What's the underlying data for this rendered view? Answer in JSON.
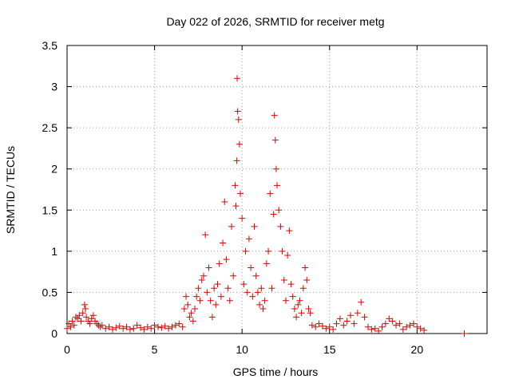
{
  "chart_data": {
    "type": "scatter",
    "title": "Day 022 of 2026, SRMTID for receiver metg",
    "xlabel": "GPS time / hours",
    "ylabel": "SRMTID / TECUs",
    "xlim": [
      0,
      24
    ],
    "ylim": [
      0,
      3.5
    ],
    "xticks": [
      0,
      5,
      10,
      15,
      20
    ],
    "xtick_labels": [
      "0",
      "5",
      "10",
      "15",
      "20"
    ],
    "yticks": [
      0,
      0.5,
      1,
      1.5,
      2,
      2.5,
      3,
      3.5
    ],
    "ytick_labels": [
      "0",
      "0.5",
      "1",
      "1.5",
      "2",
      "2.5",
      "3",
      "3.5"
    ],
    "grid": true,
    "legend": "none",
    "marker": "plus",
    "color": "#e00000",
    "series": [
      {
        "x": [
          0.0,
          0.1,
          0.2,
          0.3,
          0.4,
          0.5,
          0.6,
          0.7,
          0.8,
          0.9,
          1.0,
          1.05,
          1.1,
          1.2,
          1.3,
          1.4,
          1.5,
          1.6,
          1.7,
          1.8,
          1.9,
          2.0,
          2.2,
          2.4,
          2.6,
          2.8,
          3.0,
          3.2,
          3.4,
          3.6,
          3.8,
          4.0,
          4.2,
          4.4,
          4.6,
          4.8,
          5.0,
          5.2,
          5.4,
          5.6,
          5.8,
          6.0,
          6.2,
          6.4,
          6.6,
          6.7,
          6.8,
          6.9,
          7.0,
          7.1,
          7.2,
          7.3,
          7.4,
          7.5,
          7.6,
          7.7,
          7.8,
          7.9,
          8.0,
          8.1,
          8.2,
          8.3,
          8.4,
          8.5,
          8.6,
          8.7,
          8.8,
          8.9,
          9.0,
          9.1,
          9.2,
          9.3,
          9.4,
          9.5,
          9.6,
          9.65,
          9.7,
          9.72,
          9.75,
          9.8,
          9.85,
          9.9,
          10.0,
          10.1,
          10.2,
          10.3,
          10.4,
          10.5,
          10.6,
          10.7,
          10.8,
          10.9,
          11.0,
          11.1,
          11.2,
          11.3,
          11.4,
          11.5,
          11.6,
          11.7,
          11.8,
          11.85,
          11.9,
          11.95,
          12.0,
          12.1,
          12.2,
          12.3,
          12.4,
          12.5,
          12.6,
          12.7,
          12.8,
          12.9,
          13.0,
          13.1,
          13.2,
          13.3,
          13.4,
          13.5,
          13.6,
          13.7,
          13.8,
          13.9,
          14.0,
          14.2,
          14.4,
          14.6,
          14.8,
          15.0,
          15.2,
          15.4,
          15.6,
          15.8,
          16.0,
          16.2,
          16.4,
          16.6,
          16.8,
          17.0,
          17.2,
          17.4,
          17.6,
          17.8,
          18.0,
          18.2,
          18.4,
          18.6,
          18.8,
          19.0,
          19.2,
          19.4,
          19.6,
          19.8,
          20.0,
          20.2,
          20.4,
          22.7
        ],
        "y": [
          0.06,
          0.12,
          0.08,
          0.15,
          0.1,
          0.2,
          0.18,
          0.22,
          0.15,
          0.25,
          0.35,
          0.3,
          0.2,
          0.15,
          0.12,
          0.18,
          0.22,
          0.15,
          0.12,
          0.1,
          0.08,
          0.1,
          0.06,
          0.08,
          0.05,
          0.07,
          0.09,
          0.06,
          0.08,
          0.05,
          0.06,
          0.1,
          0.07,
          0.05,
          0.08,
          0.06,
          0.1,
          0.08,
          0.07,
          0.09,
          0.06,
          0.08,
          0.1,
          0.12,
          0.08,
          0.3,
          0.45,
          0.35,
          0.2,
          0.25,
          0.15,
          0.3,
          0.45,
          0.55,
          0.4,
          0.65,
          0.7,
          1.2,
          0.5,
          0.8,
          0.4,
          0.2,
          0.55,
          0.35,
          0.6,
          0.85,
          0.45,
          1.1,
          1.6,
          0.9,
          0.55,
          0.4,
          1.3,
          0.7,
          1.8,
          1.55,
          2.1,
          3.1,
          2.7,
          2.6,
          2.3,
          1.7,
          1.4,
          0.6,
          1.0,
          0.5,
          1.15,
          0.8,
          0.45,
          1.3,
          0.7,
          0.5,
          0.35,
          0.55,
          0.3,
          0.4,
          0.85,
          1.0,
          1.7,
          0.55,
          1.45,
          2.65,
          2.35,
          2.0,
          1.8,
          1.5,
          1.3,
          1.0,
          0.65,
          0.4,
          0.95,
          1.25,
          0.6,
          0.45,
          0.3,
          0.2,
          0.35,
          0.4,
          0.25,
          0.55,
          0.8,
          0.65,
          0.3,
          0.25,
          0.1,
          0.08,
          0.12,
          0.09,
          0.06,
          0.08,
          0.05,
          0.12,
          0.18,
          0.1,
          0.15,
          0.22,
          0.12,
          0.25,
          0.38,
          0.2,
          0.08,
          0.05,
          0.06,
          0.03,
          0.08,
          0.12,
          0.18,
          0.15,
          0.1,
          0.12,
          0.05,
          0.08,
          0.1,
          0.12,
          0.08,
          0.06,
          0.04,
          0.0
        ]
      }
    ]
  }
}
